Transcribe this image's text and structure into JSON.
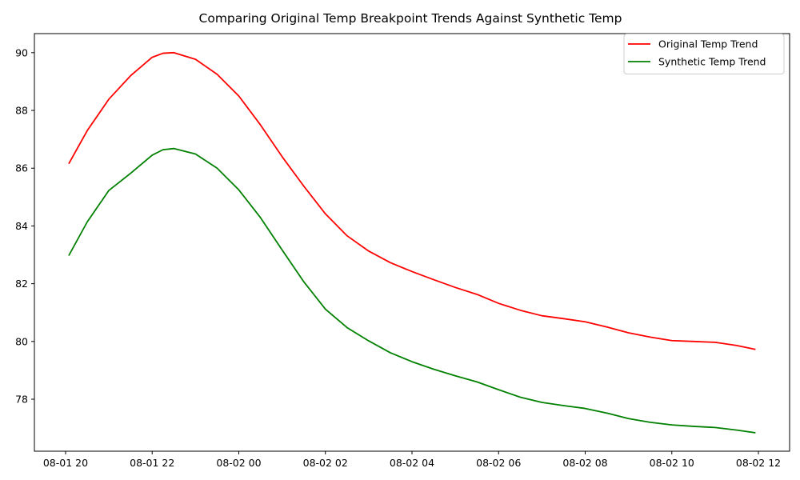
{
  "chart_data": {
    "type": "line",
    "title": "Comparing Original Temp Breakpoint Trends Against Synthetic Temp",
    "xlabel": "",
    "ylabel": "",
    "x_unit": "hours",
    "x_origin": "2024-08-01 20:00",
    "xlim": [
      -0.72,
      16.72
    ],
    "ylim": [
      76.2,
      90.66
    ],
    "x_ticks": [
      {
        "value": 0,
        "label": "08-01 20"
      },
      {
        "value": 2,
        "label": "08-01 22"
      },
      {
        "value": 4,
        "label": "08-02 00"
      },
      {
        "value": 6,
        "label": "08-02 02"
      },
      {
        "value": 8,
        "label": "08-02 04"
      },
      {
        "value": 10,
        "label": "08-02 06"
      },
      {
        "value": 12,
        "label": "08-02 08"
      },
      {
        "value": 14,
        "label": "08-02 10"
      },
      {
        "value": 16,
        "label": "08-02 12"
      }
    ],
    "y_ticks": [
      78,
      80,
      82,
      84,
      86,
      88,
      90
    ],
    "legend_position": "top-right",
    "grid": false,
    "x": [
      0.08,
      0.5,
      1.0,
      1.5,
      2.0,
      2.25,
      2.5,
      3.0,
      3.5,
      4.0,
      4.5,
      5.0,
      5.5,
      6.0,
      6.5,
      7.0,
      7.5,
      8.0,
      8.5,
      9.0,
      9.5,
      10.0,
      10.5,
      11.0,
      11.5,
      12.0,
      12.5,
      13.0,
      13.5,
      14.0,
      14.5,
      15.0,
      15.5,
      15.92
    ],
    "series": [
      {
        "name": "Original Temp Trend",
        "color": "#ff0000",
        "values": [
          86.17,
          87.3,
          88.39,
          89.2,
          89.84,
          89.98,
          90.0,
          89.77,
          89.25,
          88.5,
          87.5,
          86.4,
          85.38,
          84.42,
          83.66,
          83.13,
          82.73,
          82.42,
          82.14,
          81.87,
          81.63,
          81.32,
          81.08,
          80.89,
          80.79,
          80.68,
          80.5,
          80.3,
          80.15,
          80.03,
          80.0,
          79.97,
          79.86,
          79.73
        ]
      },
      {
        "name": "Synthetic Temp Trend",
        "color": "#008000",
        "values": [
          82.99,
          84.14,
          85.23,
          85.82,
          86.45,
          86.64,
          86.68,
          86.49,
          86.0,
          85.25,
          84.29,
          83.17,
          82.07,
          81.12,
          80.48,
          80.02,
          79.61,
          79.3,
          79.04,
          78.81,
          78.6,
          78.33,
          78.07,
          77.89,
          77.78,
          77.68,
          77.52,
          77.33,
          77.2,
          77.11,
          77.06,
          77.02,
          76.93,
          76.84
        ]
      }
    ]
  }
}
